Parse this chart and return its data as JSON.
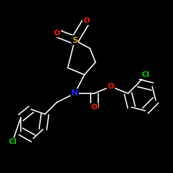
{
  "background_color": "#000000",
  "bond_color": "#ffffff",
  "bond_width": 1.2,
  "atom_labels": {
    "S": {
      "color": "#c8a000"
    },
    "O": {
      "color": "#ff1800"
    },
    "N": {
      "color": "#2020ff"
    },
    "Cl": {
      "color": "#00cc00"
    }
  }
}
